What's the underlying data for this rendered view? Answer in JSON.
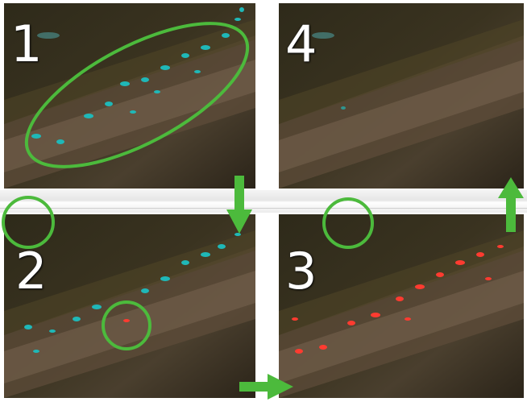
{
  "panels": [
    {
      "label": "1"
    },
    {
      "label": "2"
    },
    {
      "label": "3"
    },
    {
      "label": "4"
    }
  ],
  "colors": {
    "annotation_green": "#4cba3c",
    "marker_cyan": "#1fb8b8",
    "marker_red": "#ff3b30",
    "tissue_dark": "#2a2518",
    "tissue_brown": "#6a5641"
  },
  "icons": [
    "ellipse-annotation",
    "circle-annotation",
    "arrow-down-icon",
    "arrow-right-icon",
    "arrow-up-icon"
  ]
}
